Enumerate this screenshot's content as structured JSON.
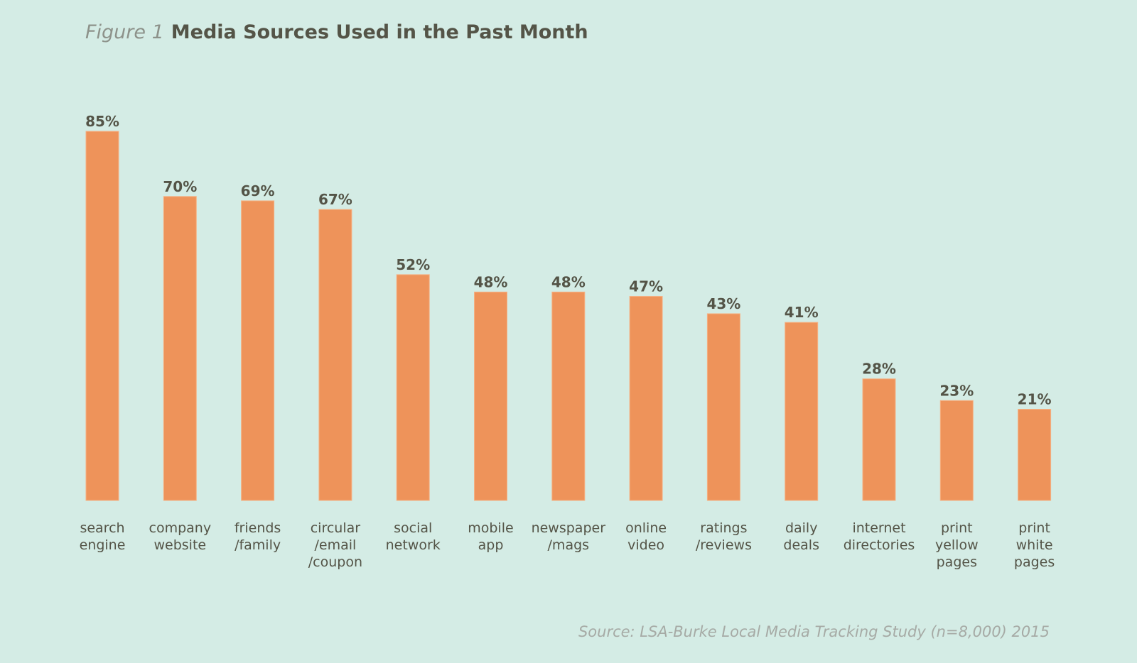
{
  "figure_label": "Figure 1",
  "title": "Media Sources Used in the Past Month",
  "source": "Source: LSA-Burke Local Media Tracking Study (n=8,000) 2015",
  "colors": {
    "background": "#d4ece5",
    "bar": "#ee935a",
    "bar_edge": "#f5b285",
    "text": "#545447",
    "muted": "#a6aaa5"
  },
  "chart_data": {
    "type": "bar",
    "title": "Media Sources Used in the Past Month",
    "categories": [
      [
        "search",
        "engine"
      ],
      [
        "company",
        "website"
      ],
      [
        "friends",
        "/family"
      ],
      [
        "circular",
        "/email",
        "/coupon"
      ],
      [
        "social",
        "network"
      ],
      [
        "mobile",
        "app"
      ],
      [
        "newspaper",
        "/mags"
      ],
      [
        "online",
        "video"
      ],
      [
        "ratings",
        "/reviews"
      ],
      [
        "daily",
        "deals"
      ],
      [
        "internet",
        "directories"
      ],
      [
        "print",
        "yellow",
        "pages"
      ],
      [
        "print",
        "white",
        "pages"
      ]
    ],
    "values": [
      85,
      70,
      69,
      67,
      52,
      48,
      48,
      47,
      43,
      41,
      28,
      23,
      21
    ],
    "value_labels": [
      "85%",
      "70%",
      "69%",
      "67%",
      "52%",
      "48%",
      "48%",
      "47%",
      "43%",
      "41%",
      "28%",
      "23%",
      "21%"
    ],
    "ylim": [
      0,
      85
    ],
    "grid": false,
    "legend": "none"
  }
}
